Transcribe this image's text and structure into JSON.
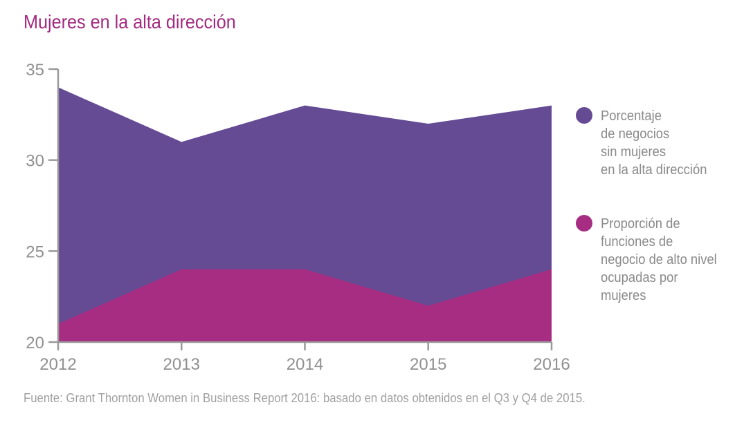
{
  "chart_data": {
    "type": "area",
    "title": "Mujeres en la alta dirección",
    "x": [
      "2012",
      "2013",
      "2014",
      "2015",
      "2016"
    ],
    "ylim": [
      20,
      35
    ],
    "yticks": [
      20,
      25,
      30,
      35
    ],
    "grid": false,
    "legend_placement": "right",
    "series": [
      {
        "name": "Porcentaje\nde negocios\nsin mujeres\nen la alta dirección",
        "values": [
          34,
          31,
          33,
          32,
          33
        ],
        "color": "#654b94"
      },
      {
        "name": "Proporción de\nfunciones de\nnegocio de alto nivel\nocupadas por\nmujeres",
        "values": [
          21,
          24,
          24,
          22,
          24
        ],
        "color": "#a62d82"
      }
    ],
    "source": "Fuente: Grant Thornton Women in Business Report 2016: basado en datos obtenidos en el Q3 y Q4 de 2015."
  }
}
